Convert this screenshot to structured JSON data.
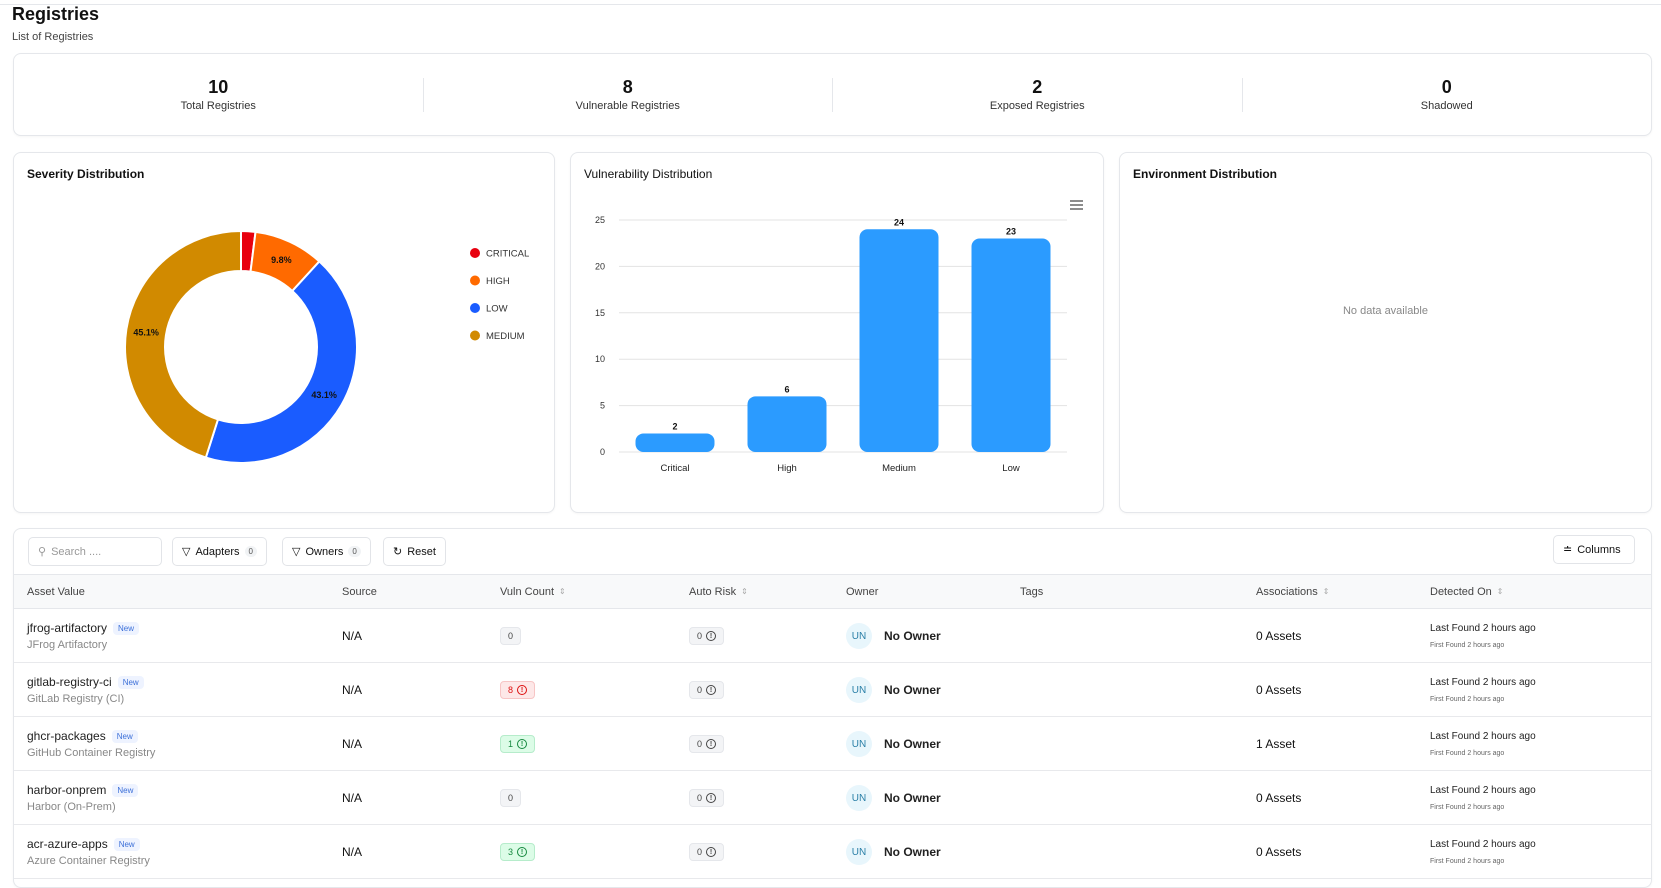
{
  "page": {
    "title": "Registries",
    "subtitle": "List of Registries"
  },
  "stats": [
    {
      "value": "10",
      "label": "Total Registries"
    },
    {
      "value": "8",
      "label": "Vulnerable Registries"
    },
    {
      "value": "2",
      "label": "Exposed Registries"
    },
    {
      "value": "0",
      "label": "Shadowed"
    }
  ],
  "chart_data": [
    {
      "type": "pie",
      "title": "Severity Distribution",
      "labels": [
        "CRITICAL",
        "HIGH",
        "LOW",
        "MEDIUM"
      ],
      "values": [
        2.0,
        9.8,
        43.1,
        45.1
      ],
      "data_labels": [
        "",
        "9.8%",
        "43.1%",
        "45.1%"
      ],
      "colors": [
        "#e8000f",
        "#ff6a00",
        "#1a5cff",
        "#d18a00"
      ],
      "legend": "right"
    },
    {
      "type": "bar",
      "title": "Vulnerability Distribution",
      "categories": [
        "Critical",
        "High",
        "Medium",
        "Low"
      ],
      "values": [
        2,
        6,
        24,
        23
      ],
      "ylim": [
        0,
        25
      ],
      "yticks": [
        "0",
        "5",
        "10",
        "15",
        "20",
        "25"
      ],
      "color": "#2b9bff",
      "grid": true
    }
  ],
  "environment": {
    "title": "Environment Distribution",
    "empty": "No data available"
  },
  "toolbar": {
    "search_placeholder": "Search ....",
    "adapters": "Adapters",
    "adapters_count": "0",
    "owners": "Owners",
    "owners_count": "0",
    "reset": "Reset",
    "columns": "Columns"
  },
  "table": {
    "headers": [
      "Asset Value",
      "Source",
      "Vuln Count",
      "Auto Risk",
      "Owner",
      "Tags",
      "Associations",
      "Detected On"
    ],
    "rows": [
      {
        "name": "jfrog-artifactory",
        "badge": "New",
        "type": "JFrog Artifactory",
        "source": "N/A",
        "vuln": "0",
        "vuln_status": "neutral",
        "risk": "0",
        "owner_initials": "UN",
        "owner": "No Owner",
        "assoc": "0 Assets",
        "last": "Last Found 2 hours ago",
        "first": "First Found 2 hours ago"
      },
      {
        "name": "gitlab-registry-ci",
        "badge": "New",
        "type": "GitLab Registry (CI)",
        "source": "N/A",
        "vuln": "8",
        "vuln_status": "red",
        "risk": "0",
        "owner_initials": "UN",
        "owner": "No Owner",
        "assoc": "0 Assets",
        "last": "Last Found 2 hours ago",
        "first": "First Found 2 hours ago"
      },
      {
        "name": "ghcr-packages",
        "badge": "New",
        "type": "GitHub Container Registry",
        "source": "N/A",
        "vuln": "1",
        "vuln_status": "green",
        "risk": "0",
        "owner_initials": "UN",
        "owner": "No Owner",
        "assoc": "1 Asset",
        "last": "Last Found 2 hours ago",
        "first": "First Found 2 hours ago"
      },
      {
        "name": "harbor-onprem",
        "badge": "New",
        "type": "Harbor (On-Prem)",
        "source": "N/A",
        "vuln": "0",
        "vuln_status": "neutral",
        "risk": "0",
        "owner_initials": "UN",
        "owner": "No Owner",
        "assoc": "0 Assets",
        "last": "Last Found 2 hours ago",
        "first": "First Found 2 hours ago"
      },
      {
        "name": "acr-azure-apps",
        "badge": "New",
        "type": "Azure Container Registry",
        "source": "N/A",
        "vuln": "3",
        "vuln_status": "green",
        "risk": "0",
        "owner_initials": "UN",
        "owner": "No Owner",
        "assoc": "0 Assets",
        "last": "Last Found 2 hours ago",
        "first": "First Found 2 hours ago"
      }
    ]
  }
}
